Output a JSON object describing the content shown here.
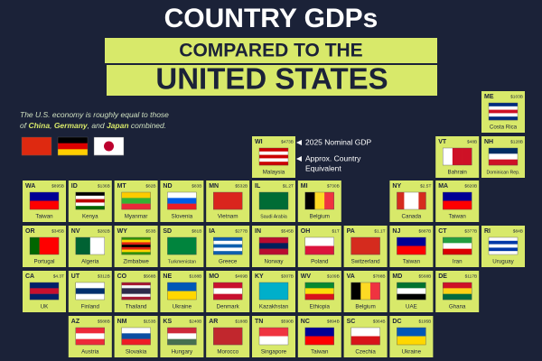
{
  "header": {
    "line1": "COUNTRY GDPs",
    "line2": "COMPARED TO THE",
    "line3": "UNITED STATES"
  },
  "intro": {
    "lines": [
      [
        "The U.S. economy is roughly equal to those"
      ],
      [
        "of ",
        "China",
        ", ",
        "Germany",
        ", and ",
        "Japan",
        " combined."
      ]
    ],
    "flags": [
      {
        "flag": [
          "#de2910"
        ]
      },
      {
        "flag": [
          "#000000",
          "#dd0000",
          "#ffce00"
        ]
      },
      {
        "flag": [
          "#ffffff"
        ]
      }
    ]
  },
  "legend": {
    "gdp": "2025 Nominal GDP",
    "country": [
      "Approx. Country",
      "Equivalent"
    ]
  },
  "tiles": [
    {
      "state": "ME",
      "gdp": "$103B",
      "country": "Costa Rica",
      "flag": [
        "#002b7f",
        "#ffffff",
        "#ce1126",
        "#ffffff",
        "#002b7f"
      ]
    },
    {
      "state": "WI",
      "gdp": "$473B",
      "country": "Malaysia",
      "flag": [
        "#cc0001",
        "#ffffff",
        "#cc0001",
        "#ffffff",
        "#cc0001"
      ]
    },
    {
      "state": "VT",
      "gdp": "$48B",
      "country": "Bahrain",
      "flag": [
        "#ffffff",
        "#ce1126",
        "#ce1126"
      ],
      "flag_dir": "v"
    },
    {
      "state": "NH",
      "gdp": "$128B",
      "country": "Dominican Rep.",
      "flag": [
        "#002d62",
        "#ffffff",
        "#ce1126"
      ]
    },
    {
      "state": "WA",
      "gdp": "$895B",
      "country": "Taiwan",
      "flag": [
        "#000095",
        "#fe0000"
      ]
    },
    {
      "state": "ID",
      "gdp": "$136B",
      "country": "Kenya",
      "flag": [
        "#000000",
        "#ffffff",
        "#bb0000",
        "#ffffff",
        "#006600"
      ]
    },
    {
      "state": "MT",
      "gdp": "$82B",
      "country": "Myanmar",
      "flag": [
        "#fecb00",
        "#34b233",
        "#ea2839"
      ]
    },
    {
      "state": "ND",
      "gdp": "$83B",
      "country": "Slovenia",
      "flag": [
        "#ffffff",
        "#005ce6",
        "#ed1c24"
      ]
    },
    {
      "state": "MN",
      "gdp": "$532B",
      "country": "Vietnam",
      "flag": [
        "#da251d"
      ]
    },
    {
      "state": "IL",
      "gdp": "$1.2T",
      "country": "Saudi Arabia",
      "flag": [
        "#006c35"
      ]
    },
    {
      "state": "MI",
      "gdp": "$730B",
      "country": "Belgium",
      "flag": [
        "#000000",
        "#fdda24",
        "#ef3340"
      ],
      "flag_dir": "v"
    },
    {
      "state": "NY",
      "gdp": "$2.5T",
      "country": "Canada",
      "flag": [
        "#d52b1e",
        "#ffffff",
        "#ffffff",
        "#d52b1e"
      ],
      "flag_dir": "v"
    },
    {
      "state": "MA",
      "gdp": "$820B",
      "country": "Taiwan",
      "flag": [
        "#000095",
        "#fe0000"
      ]
    },
    {
      "state": "OR",
      "gdp": "$345B",
      "country": "Portugal",
      "flag": [
        "#006600",
        "#ff0000",
        "#ff0000"
      ],
      "flag_dir": "v"
    },
    {
      "state": "NV",
      "gdp": "$282B",
      "country": "Algeria",
      "flag": [
        "#006233",
        "#ffffff"
      ],
      "flag_dir": "v"
    },
    {
      "state": "WY",
      "gdp": "$53B",
      "country": "Zimbabwe",
      "flag": [
        "#319208",
        "#ffd200",
        "#de2010",
        "#000000",
        "#de2010",
        "#ffd200",
        "#319208"
      ]
    },
    {
      "state": "SD",
      "gdp": "$81B",
      "country": "Turkmenistan",
      "flag": [
        "#00843d"
      ]
    },
    {
      "state": "IA",
      "gdp": "$277B",
      "country": "Greece",
      "flag": [
        "#0d5eaf",
        "#ffffff",
        "#0d5eaf",
        "#ffffff",
        "#0d5eaf"
      ]
    },
    {
      "state": "IN",
      "gdp": "$545B",
      "country": "Norway",
      "flag": [
        "#ba0c2f",
        "#00205b",
        "#ba0c2f"
      ]
    },
    {
      "state": "OH",
      "gdp": "$1T",
      "country": "Poland",
      "flag": [
        "#ffffff",
        "#dc143c"
      ]
    },
    {
      "state": "PA",
      "gdp": "$1.1T",
      "country": "Switzerland",
      "flag": [
        "#d52b1e"
      ]
    },
    {
      "state": "NJ",
      "gdp": "$887B",
      "country": "Taiwan",
      "flag": [
        "#000095",
        "#fe0000"
      ]
    },
    {
      "state": "CT",
      "gdp": "$377B",
      "country": "Iran",
      "flag": [
        "#239f40",
        "#ffffff",
        "#da0000"
      ]
    },
    {
      "state": "RI",
      "gdp": "$84B",
      "country": "Uruguay",
      "flag": [
        "#ffffff",
        "#0038a8",
        "#ffffff",
        "#0038a8",
        "#ffffff"
      ]
    },
    {
      "state": "CA",
      "gdp": "$4.3T",
      "country": "UK",
      "flag": [
        "#012169",
        "#c8102e",
        "#012169"
      ]
    },
    {
      "state": "UT",
      "gdp": "$312B",
      "country": "Finland",
      "flag": [
        "#ffffff",
        "#002f6c",
        "#ffffff"
      ]
    },
    {
      "state": "CO",
      "gdp": "$568B",
      "country": "Thailand",
      "flag": [
        "#a51931",
        "#f4f5f8",
        "#2d2a4a",
        "#2d2a4a",
        "#f4f5f8",
        "#a51931"
      ]
    },
    {
      "state": "NE",
      "gdp": "$188B",
      "country": "Ukraine",
      "flag": [
        "#0057b7",
        "#ffd700"
      ]
    },
    {
      "state": "MO",
      "gdp": "$469B",
      "country": "Denmark",
      "flag": [
        "#c8102e",
        "#ffffff",
        "#c8102e"
      ]
    },
    {
      "state": "KY",
      "gdp": "$307B",
      "country": "Kazakhstan",
      "flag": [
        "#00afca"
      ]
    },
    {
      "state": "WV",
      "gdp": "$109B",
      "country": "Ethiopia",
      "flag": [
        "#078930",
        "#fcdd09",
        "#da121a"
      ]
    },
    {
      "state": "VA",
      "gdp": "$788B",
      "country": "Belgium",
      "flag": [
        "#000000",
        "#fdda24",
        "#ef3340"
      ],
      "flag_dir": "v"
    },
    {
      "state": "MD",
      "gdp": "$568B",
      "country": "UAE",
      "flag": [
        "#00732f",
        "#ffffff",
        "#000000"
      ]
    },
    {
      "state": "DE",
      "gdp": "$117B",
      "country": "Ghana",
      "flag": [
        "#ce1126",
        "#fcd116",
        "#006b3f"
      ]
    },
    {
      "state": "AZ",
      "gdp": "$588B",
      "country": "Austria",
      "flag": [
        "#ed2939",
        "#ffffff",
        "#ed2939"
      ]
    },
    {
      "state": "NM",
      "gdp": "$153B",
      "country": "Slovakia",
      "flag": [
        "#ffffff",
        "#0b4ea2",
        "#ee1c25"
      ]
    },
    {
      "state": "KS",
      "gdp": "$240B",
      "country": "Hungary",
      "flag": [
        "#ce2939",
        "#ffffff",
        "#477050"
      ]
    },
    {
      "state": "AR",
      "gdp": "$188B",
      "country": "Morocco",
      "flag": [
        "#c1272d"
      ]
    },
    {
      "state": "TN",
      "gdp": "$590B",
      "country": "Singapore",
      "flag": [
        "#ef3340",
        "#ffffff"
      ]
    },
    {
      "state": "NC",
      "gdp": "$894B",
      "country": "Taiwan",
      "flag": [
        "#000095",
        "#fe0000"
      ]
    },
    {
      "state": "SC",
      "gdp": "$364B",
      "country": "Czechia",
      "flag": [
        "#ffffff",
        "#d7141a"
      ]
    },
    {
      "state": "DC",
      "gdp": "$195B",
      "country": "Ukraine",
      "flag": [
        "#0057b7",
        "#ffd700"
      ]
    }
  ]
}
